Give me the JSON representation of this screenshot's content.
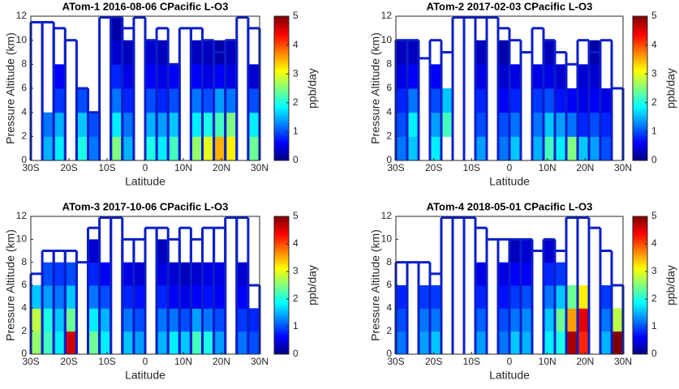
{
  "chart_data": [
    {
      "type": "heatmap",
      "title": "ATom-1 2016-08-06   CPacific    L-O3",
      "x_label": "Latitude",
      "y_label": "Pressure Altitude (km)",
      "colorbar_label": "ppb/day",
      "x": [
        -28.5,
        -25.5,
        -22.5,
        -19.5,
        -16.5,
        -13.5,
        -10.5,
        -7.5,
        -4.5,
        -1.5,
        1.5,
        4.5,
        7.5,
        10.5,
        13.5,
        16.5,
        19.5,
        22.5,
        25.5,
        28.5
      ],
      "y": [
        1,
        3,
        5,
        7,
        9,
        11
      ],
      "z": [
        [
          null,
          1.5,
          1.8,
          null,
          2.0,
          1.2,
          null,
          2.5,
          1.5,
          null,
          2.0,
          1.8,
          2.2,
          null,
          2.6,
          3.0,
          3.5,
          3.2,
          null,
          2.4
        ],
        [
          null,
          1.2,
          1.5,
          null,
          1.6,
          1.0,
          null,
          1.8,
          1.2,
          null,
          1.5,
          1.4,
          1.6,
          null,
          1.8,
          2.0,
          2.2,
          2.5,
          null,
          1.8
        ],
        [
          null,
          null,
          0.9,
          null,
          1.0,
          null,
          null,
          1.2,
          0.8,
          null,
          1.0,
          0.8,
          1.0,
          null,
          1.2,
          1.0,
          1.4,
          1.2,
          null,
          1.0
        ],
        [
          null,
          null,
          0.6,
          null,
          null,
          null,
          null,
          0.8,
          0.5,
          null,
          0.6,
          0.5,
          0.6,
          null,
          0.6,
          0.5,
          0.6,
          0.5,
          null,
          0.4
        ],
        [
          null,
          null,
          null,
          null,
          null,
          null,
          null,
          0.4,
          0.3,
          null,
          0.4,
          0.3,
          null,
          null,
          0.3,
          0.3,
          0.2,
          0.3,
          null,
          null
        ],
        [
          null,
          null,
          null,
          null,
          null,
          null,
          null,
          0.2,
          null,
          null,
          null,
          null,
          null,
          null,
          null,
          null,
          null,
          null,
          null,
          null
        ]
      ],
      "track": [
        11.5,
        11.5,
        11,
        10,
        6,
        4,
        12,
        12,
        11,
        12,
        10,
        11,
        8,
        11,
        11,
        10,
        9,
        10,
        12,
        11
      ],
      "track_color": "#0a1ec8",
      "xlim": [
        -30,
        30
      ],
      "ylim": [
        0,
        12
      ],
      "clim": [
        0,
        5
      ],
      "xticks": [
        {
          "value": -30,
          "label": "30S"
        },
        {
          "value": -20,
          "label": "20S"
        },
        {
          "value": -10,
          "label": "10S"
        },
        0,
        {
          "value": 10,
          "label": "10N"
        },
        {
          "value": 20,
          "label": "20N"
        },
        {
          "value": 30,
          "label": "30N"
        }
      ],
      "yticks": [
        0,
        2,
        4,
        6,
        8,
        10,
        12
      ],
      "cticks": [
        0,
        1,
        2,
        3,
        4,
        5
      ]
    },
    {
      "type": "heatmap",
      "title": "ATom-2 2017-02-03   CPacific    L-O3",
      "x_label": "Latitude",
      "y_label": "Pressure Altitude (km)",
      "colorbar_label": "ppb/day",
      "x": [
        -28.5,
        -25.5,
        -22.5,
        -19.5,
        -16.5,
        -13.5,
        -10.5,
        -7.5,
        -4.5,
        -1.5,
        1.5,
        4.5,
        7.5,
        10.5,
        13.5,
        16.5,
        19.5,
        22.5,
        25.5,
        28.5
      ],
      "y": [
        1,
        3,
        5,
        7,
        9,
        11
      ],
      "z": [
        [
          1.2,
          1.6,
          null,
          1.8,
          null,
          null,
          null,
          1.4,
          null,
          1.2,
          1.6,
          null,
          1.5,
          2.2,
          1.8,
          2.5,
          1.6,
          1.4,
          1.0,
          null
        ],
        [
          1.0,
          1.8,
          null,
          1.4,
          2.2,
          null,
          null,
          1.0,
          null,
          1.0,
          1.2,
          null,
          1.2,
          1.6,
          1.4,
          1.2,
          0.8,
          1.0,
          0.8,
          null
        ],
        [
          0.8,
          1.2,
          null,
          1.0,
          1.6,
          null,
          null,
          0.8,
          null,
          0.6,
          0.8,
          null,
          0.9,
          1.0,
          0.7,
          0.6,
          0.5,
          0.6,
          0.5,
          null
        ],
        [
          0.5,
          0.6,
          null,
          0.6,
          null,
          null,
          null,
          0.5,
          null,
          0.4,
          0.5,
          null,
          0.5,
          0.5,
          0.4,
          null,
          0.4,
          0.4,
          null,
          null
        ],
        [
          0.3,
          0.3,
          null,
          null,
          null,
          null,
          null,
          0.3,
          null,
          0.2,
          null,
          null,
          null,
          0.3,
          null,
          null,
          null,
          0.2,
          null,
          null
        ],
        [
          null,
          null,
          null,
          null,
          null,
          null,
          null,
          null,
          null,
          null,
          null,
          null,
          null,
          null,
          null,
          null,
          null,
          null,
          null,
          null
        ]
      ],
      "track": [
        10,
        10,
        8.5,
        10,
        9,
        12,
        12,
        12,
        12,
        11,
        10,
        9,
        11,
        10,
        9,
        8,
        10,
        9,
        10,
        6
      ],
      "track_color": "#0a1ec8",
      "xlim": [
        -30,
        30
      ],
      "ylim": [
        0,
        12
      ],
      "clim": [
        0,
        5
      ],
      "xticks": [
        {
          "value": -30,
          "label": "30S"
        },
        {
          "value": -20,
          "label": "20S"
        },
        {
          "value": -10,
          "label": "10S"
        },
        0,
        {
          "value": 10,
          "label": "10N"
        },
        {
          "value": 20,
          "label": "20N"
        },
        {
          "value": 30,
          "label": "30N"
        }
      ],
      "yticks": [
        0,
        2,
        4,
        6,
        8,
        10,
        12
      ],
      "cticks": [
        0,
        1,
        2,
        3,
        4,
        5
      ]
    },
    {
      "type": "heatmap",
      "title": "ATom-3 2017-10-06   CPacific    L-O3",
      "x_label": "Latitude",
      "y_label": "Pressure Altitude (km)",
      "colorbar_label": "ppb/day",
      "x": [
        -28.5,
        -25.5,
        -22.5,
        -19.5,
        -16.5,
        -13.5,
        -10.5,
        -7.5,
        -4.5,
        -1.5,
        1.5,
        4.5,
        7.5,
        10.5,
        13.5,
        16.5,
        19.5,
        22.5,
        25.5,
        28.5
      ],
      "y": [
        1,
        3,
        5,
        7,
        9,
        11
      ],
      "z": [
        [
          2.6,
          2.2,
          1.8,
          4.6,
          null,
          2.4,
          1.8,
          null,
          1.6,
          1.4,
          null,
          1.5,
          1.8,
          1.6,
          2.2,
          2.0,
          1.4,
          null,
          1.2,
          1.0
        ],
        [
          2.8,
          2.0,
          1.6,
          2.4,
          null,
          1.8,
          1.5,
          null,
          1.2,
          1.0,
          null,
          1.2,
          1.2,
          1.0,
          1.4,
          1.2,
          1.0,
          null,
          0.9,
          0.8
        ],
        [
          1.6,
          1.4,
          1.2,
          1.6,
          null,
          1.2,
          1.0,
          null,
          0.8,
          0.7,
          null,
          0.8,
          0.6,
          0.5,
          0.6,
          0.7,
          0.6,
          null,
          0.6,
          null
        ],
        [
          null,
          1.0,
          0.9,
          1.0,
          null,
          0.8,
          0.6,
          null,
          0.5,
          0.4,
          null,
          0.5,
          0.4,
          0.3,
          0.4,
          0.5,
          0.5,
          null,
          0.4,
          null
        ],
        [
          null,
          null,
          null,
          null,
          null,
          0.4,
          null,
          null,
          null,
          null,
          null,
          0.3,
          null,
          null,
          null,
          null,
          null,
          null,
          null,
          null
        ],
        [
          null,
          null,
          null,
          null,
          null,
          null,
          null,
          null,
          null,
          null,
          null,
          null,
          null,
          null,
          null,
          null,
          null,
          null,
          null,
          null
        ]
      ],
      "track": [
        7,
        9,
        9,
        9,
        8,
        11,
        12,
        12,
        10,
        10,
        11,
        11,
        10,
        11,
        10,
        11,
        11,
        12,
        12,
        6
      ],
      "track_color": "#0a1ec8",
      "xlim": [
        -30,
        30
      ],
      "ylim": [
        0,
        12
      ],
      "clim": [
        0,
        5
      ],
      "xticks": [
        {
          "value": -30,
          "label": "30S"
        },
        {
          "value": -20,
          "label": "20S"
        },
        {
          "value": -10,
          "label": "10S"
        },
        0,
        {
          "value": 10,
          "label": "10N"
        },
        {
          "value": 20,
          "label": "20N"
        },
        {
          "value": 30,
          "label": "30N"
        }
      ],
      "yticks": [
        0,
        2,
        4,
        6,
        8,
        10,
        12
      ],
      "cticks": [
        0,
        1,
        2,
        3,
        4,
        5
      ]
    },
    {
      "type": "heatmap",
      "title": "ATom-4 2018-05-01   CPacific    L-O3",
      "x_label": "Latitude",
      "y_label": "Pressure Altitude (km)",
      "colorbar_label": "ppb/day",
      "x": [
        -28.5,
        -25.5,
        -22.5,
        -19.5,
        -16.5,
        -13.5,
        -10.5,
        -7.5,
        -4.5,
        -1.5,
        1.5,
        4.5,
        7.5,
        10.5,
        13.5,
        16.5,
        19.5,
        22.5,
        25.5,
        28.5
      ],
      "y": [
        1,
        3,
        5,
        7,
        9,
        11
      ],
      "z": [
        [
          1.2,
          null,
          1.4,
          1.6,
          null,
          null,
          null,
          1.4,
          null,
          1.2,
          1.6,
          1.5,
          null,
          1.8,
          2.0,
          4.8,
          4.2,
          null,
          1.5,
          5.0
        ],
        [
          1.0,
          null,
          1.2,
          1.2,
          null,
          null,
          null,
          1.1,
          null,
          1.0,
          1.2,
          1.3,
          null,
          1.6,
          2.4,
          3.6,
          4.5,
          null,
          1.2,
          2.8
        ],
        [
          0.8,
          null,
          0.9,
          0.9,
          null,
          null,
          null,
          0.8,
          null,
          0.7,
          0.9,
          1.0,
          null,
          1.2,
          1.6,
          2.4,
          3.2,
          null,
          0.9,
          null
        ],
        [
          null,
          null,
          null,
          null,
          null,
          null,
          null,
          0.5,
          null,
          0.5,
          0.6,
          0.6,
          null,
          0.8,
          0.9,
          null,
          null,
          null,
          null,
          null
        ],
        [
          null,
          null,
          null,
          null,
          null,
          null,
          null,
          null,
          null,
          null,
          0.3,
          0.4,
          null,
          0.4,
          null,
          null,
          null,
          null,
          null,
          null
        ],
        [
          null,
          null,
          null,
          null,
          null,
          null,
          null,
          null,
          null,
          null,
          null,
          null,
          null,
          null,
          null,
          null,
          null,
          null,
          null,
          null
        ]
      ],
      "track": [
        8,
        8,
        8,
        7,
        12,
        12,
        12,
        11,
        10,
        10,
        10,
        10,
        9,
        10,
        9,
        12,
        12,
        11,
        9,
        6
      ],
      "track_color": "#0a1ec8",
      "xlim": [
        -30,
        30
      ],
      "ylim": [
        0,
        12
      ],
      "clim": [
        0,
        5
      ],
      "xticks": [
        {
          "value": -30,
          "label": "30S"
        },
        {
          "value": -20,
          "label": "20S"
        },
        {
          "value": -10,
          "label": "10S"
        },
        0,
        {
          "value": 10,
          "label": "10N"
        },
        {
          "value": 20,
          "label": "20N"
        },
        {
          "value": 30,
          "label": "30N"
        }
      ],
      "yticks": [
        0,
        2,
        4,
        6,
        8,
        10,
        12
      ],
      "cticks": [
        0,
        1,
        2,
        3,
        4,
        5
      ]
    }
  ]
}
